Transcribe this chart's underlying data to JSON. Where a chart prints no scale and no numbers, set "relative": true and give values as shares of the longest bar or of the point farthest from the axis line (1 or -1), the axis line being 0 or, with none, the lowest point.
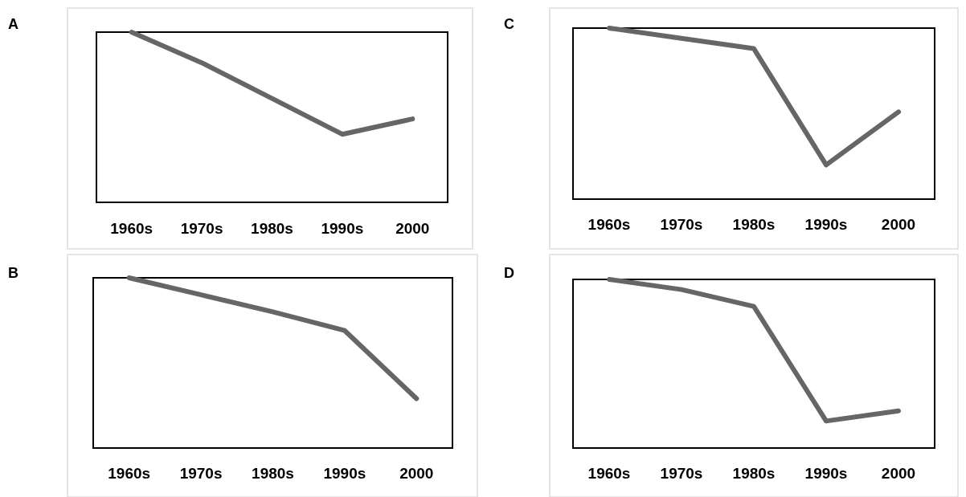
{
  "chart_data": [
    {
      "type": "line",
      "title": "A",
      "categories": [
        "1960s",
        "1970s",
        "1980s",
        "1990s",
        "2000"
      ],
      "values": [
        1,
        0.82,
        0.61,
        0.4,
        0.49
      ],
      "color": "#666666",
      "relative": true,
      "tick_labels": "x"
    },
    {
      "type": "line",
      "title": "C",
      "categories": [
        "1960s",
        "1970s",
        "1980s",
        "1990s",
        "2000"
      ],
      "values": [
        1,
        0.94,
        0.88,
        0.2,
        0.51
      ],
      "color": "#666666",
      "relative": true,
      "tick_labels": "x"
    },
    {
      "type": "line",
      "title": "B",
      "categories": [
        "1960s",
        "1970s",
        "1980s",
        "1990s",
        "2000"
      ],
      "values": [
        1,
        0.9,
        0.8,
        0.69,
        0.29
      ],
      "color": "#666666",
      "relative": true,
      "tick_labels": "x"
    },
    {
      "type": "line",
      "title": "D",
      "categories": [
        "1960s",
        "1970s",
        "1980s",
        "1990s",
        "2000"
      ],
      "values": [
        1,
        0.94,
        0.84,
        0.16,
        0.22
      ],
      "color": "#666666",
      "relative": true,
      "tick_labels": "x"
    }
  ]
}
